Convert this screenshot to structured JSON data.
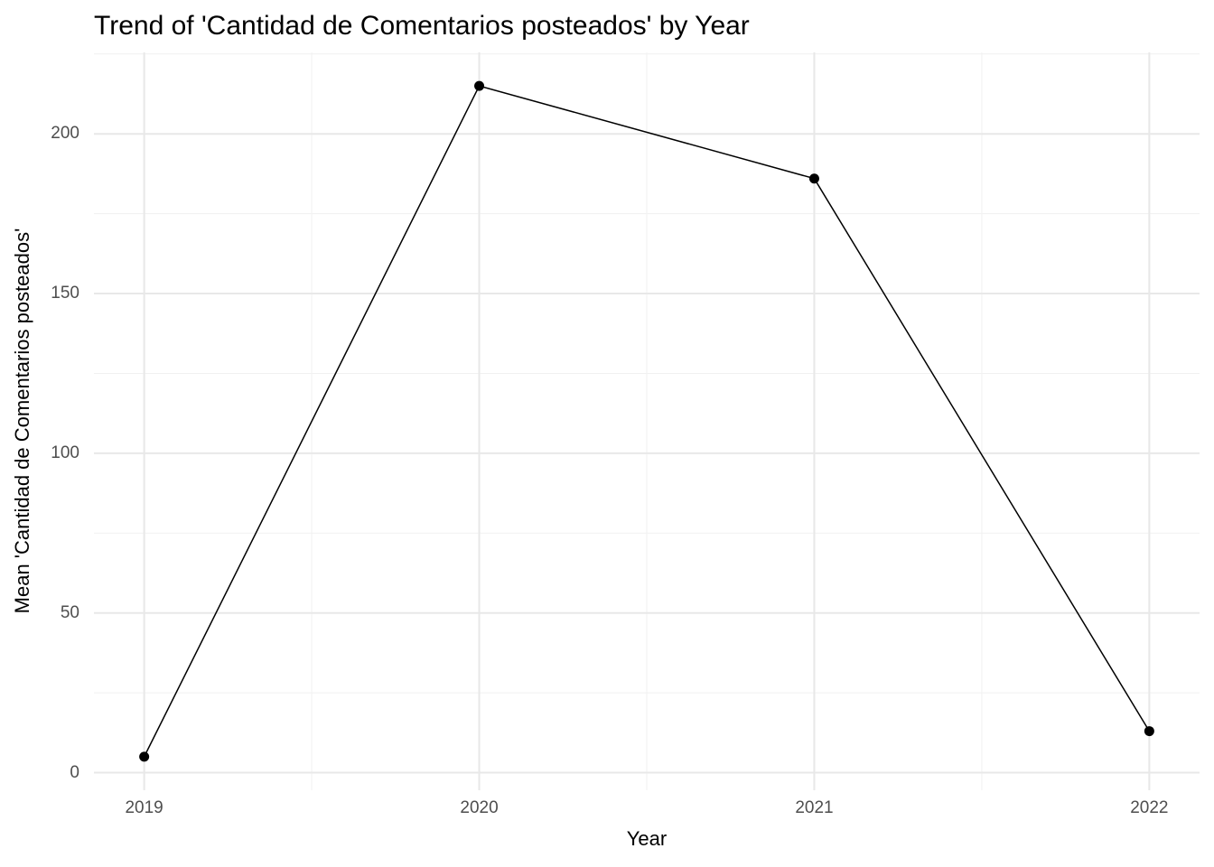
{
  "chart_data": {
    "type": "line",
    "title": "Trend of 'Cantidad de Comentarios posteados' by Year",
    "xlabel": "Year",
    "ylabel": "Mean 'Cantidad de Comentarios posteados'",
    "x": [
      2019,
      2020,
      2021,
      2022
    ],
    "values": [
      5,
      215,
      186,
      13
    ],
    "series_name": "Mean 'Cantidad de Comentarios posteados'",
    "xlim": [
      2018.85,
      2022.15
    ],
    "ylim": [
      -5.5,
      225.5
    ],
    "xticks": [
      2019,
      2020,
      2021,
      2022
    ],
    "xtick_labels": [
      "2019",
      "2020",
      "2021",
      "2022"
    ],
    "yticks": [
      0,
      50,
      100,
      150,
      200
    ],
    "ytick_labels": [
      "0",
      "50",
      "100",
      "150",
      "200"
    ],
    "xticks_minor": [
      2019.5,
      2020.5,
      2021.5
    ],
    "yticks_minor": [
      25,
      75,
      125,
      175,
      225
    ],
    "grid": "on",
    "legend": "none",
    "style": {
      "background": "#ffffff",
      "line_color": "#000000",
      "point_color": "#000000",
      "grid_major_color": "#e8e8e8",
      "grid_minor_color": "#f1f1f1",
      "tick_label_color": "#4e4e4e",
      "title_color": "#000000"
    }
  }
}
